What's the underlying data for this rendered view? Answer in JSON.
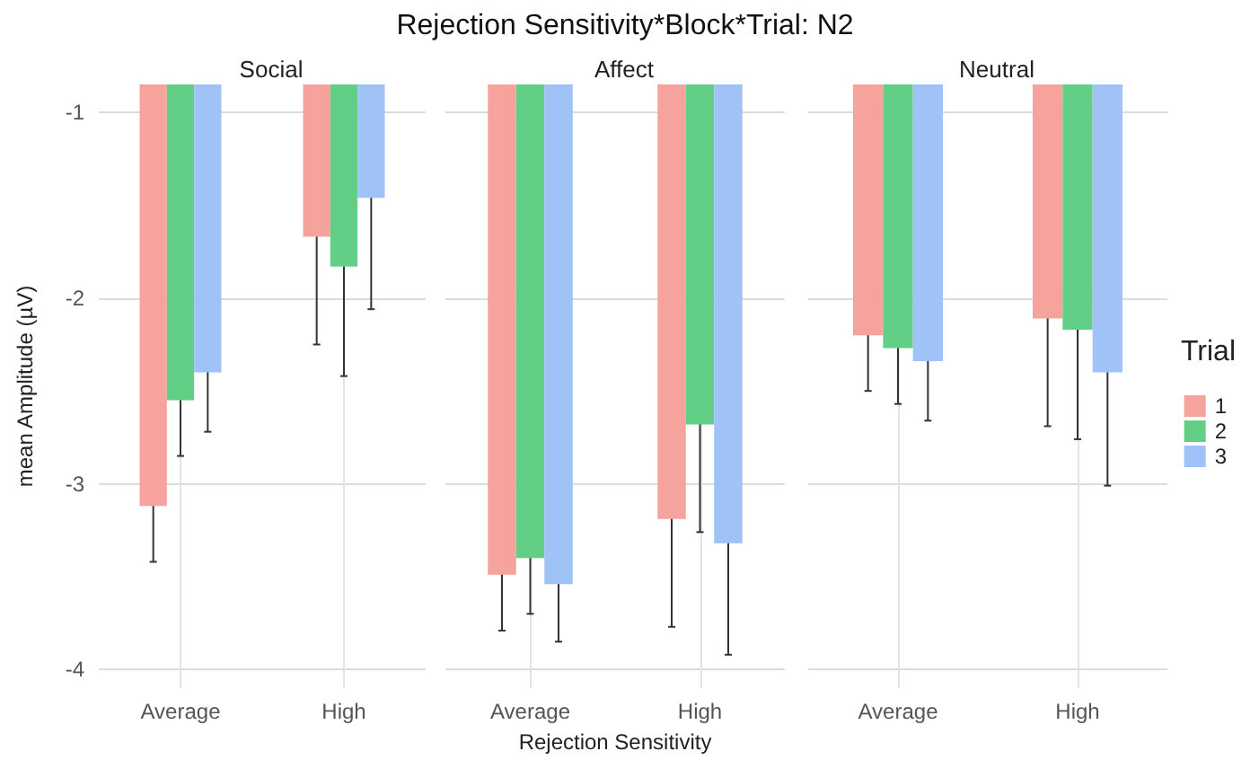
{
  "chart_data": [
    {
      "type": "bar",
      "subtitle": "Social",
      "ylabel": "mean Amplitude (µV)",
      "categories": [
        "Average",
        "High"
      ],
      "ylim": [
        -4.1,
        -0.85
      ],
      "yticks": [
        -1,
        -2,
        -3,
        -4
      ],
      "grid": true,
      "series": [
        {
          "color": "#f5a39c",
          "values": [
            -3.12,
            -1.67
          ],
          "errors": [
            0.3,
            0.58
          ]
        },
        {
          "color": "#63cf86",
          "values": [
            -2.55,
            -1.83
          ],
          "errors": [
            0.3,
            0.59
          ]
        },
        {
          "color": "#9fc2f7",
          "values": [
            -2.4,
            -1.46
          ],
          "errors": [
            0.32,
            0.6
          ]
        }
      ]
    },
    {
      "type": "bar",
      "title": "Rejection Sensitivity*Block*Trial: N2",
      "subtitle": "Affect",
      "xlabel": "Rejection Sensitivity",
      "categories": [
        "Average",
        "High"
      ],
      "ylim": [
        -4.1,
        -0.85
      ],
      "yticks": [
        -1,
        -2,
        -3,
        -4
      ],
      "grid": true,
      "tick_labels": "x",
      "series": [
        {
          "color": "#f5a39c",
          "values": [
            -3.49,
            -3.19
          ],
          "errors": [
            0.3,
            0.58
          ]
        },
        {
          "color": "#63cf86",
          "values": [
            -3.4,
            -2.68
          ],
          "errors": [
            0.3,
            0.58
          ]
        },
        {
          "color": "#9fc2f7",
          "values": [
            -3.54,
            -3.32
          ],
          "errors": [
            0.31,
            0.6
          ]
        }
      ]
    },
    {
      "type": "bar",
      "subtitle": "Neutral",
      "categories": [
        "Average",
        "High"
      ],
      "ylim": [
        -4.1,
        -0.85
      ],
      "yticks": [
        -1,
        -2,
        -3,
        -4
      ],
      "grid": true,
      "tick_labels": "x",
      "legend": "right",
      "legend_title": "Trial",
      "series": [
        {
          "name": "1",
          "color": "#f5a39c",
          "values": [
            -2.2,
            -2.11
          ],
          "errors": [
            0.3,
            0.58
          ]
        },
        {
          "name": "2",
          "color": "#63cf86",
          "values": [
            -2.27,
            -2.17
          ],
          "errors": [
            0.3,
            0.59
          ]
        },
        {
          "name": "3",
          "color": "#9fc2f7",
          "values": [
            -2.34,
            -2.4
          ],
          "errors": [
            0.32,
            0.61
          ]
        }
      ]
    }
  ]
}
